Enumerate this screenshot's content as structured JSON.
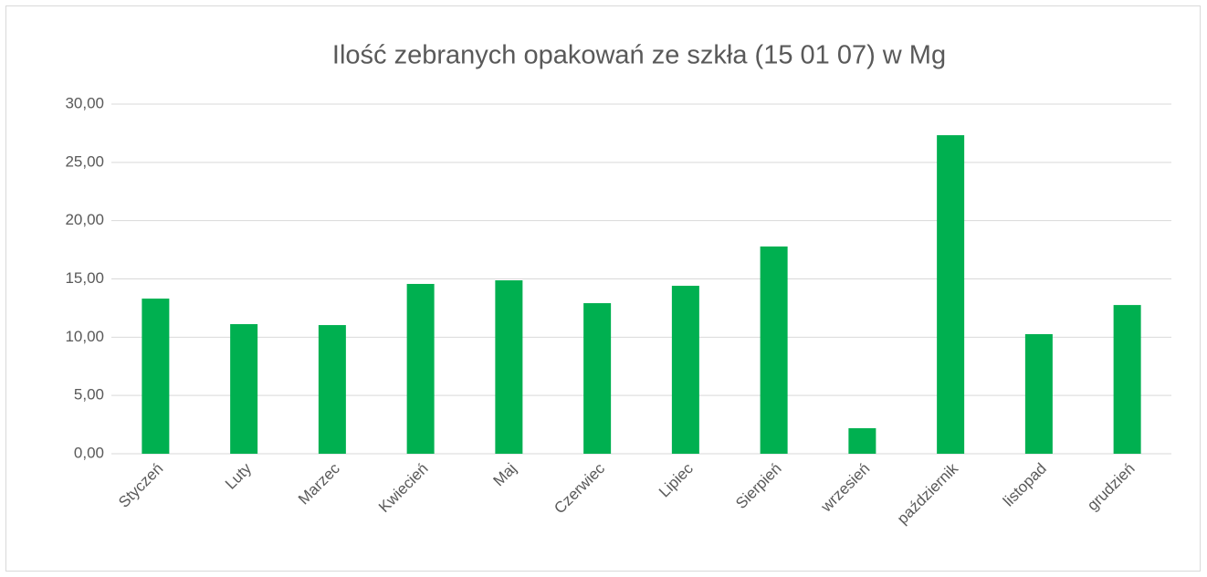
{
  "chart_data": {
    "type": "bar",
    "title": "Ilość zebranych opakowań ze szkła (15 01 07) w Mg",
    "categories": [
      "Styczeń",
      "Luty",
      "Marzec",
      "Kwiecień",
      "Maj",
      "Czerwiec",
      "Lipiec",
      "Sierpień",
      "wrzesień",
      "październik",
      "listopad",
      "grudzień"
    ],
    "values": [
      13.31,
      11.12,
      11.04,
      14.57,
      14.88,
      12.92,
      14.41,
      17.78,
      2.19,
      27.33,
      10.26,
      12.76
    ],
    "color": "#00b050",
    "ylim": [
      0,
      30
    ],
    "yticks": [
      {
        "value": 0,
        "label": "0,00"
      },
      {
        "value": 5,
        "label": "5,00"
      },
      {
        "value": 10,
        "label": "10,00"
      },
      {
        "value": 15,
        "label": "15,00"
      },
      {
        "value": 20,
        "label": "20,00"
      },
      {
        "value": 25,
        "label": "25,00"
      },
      {
        "value": 30,
        "label": "30,00"
      }
    ],
    "grid": true
  }
}
